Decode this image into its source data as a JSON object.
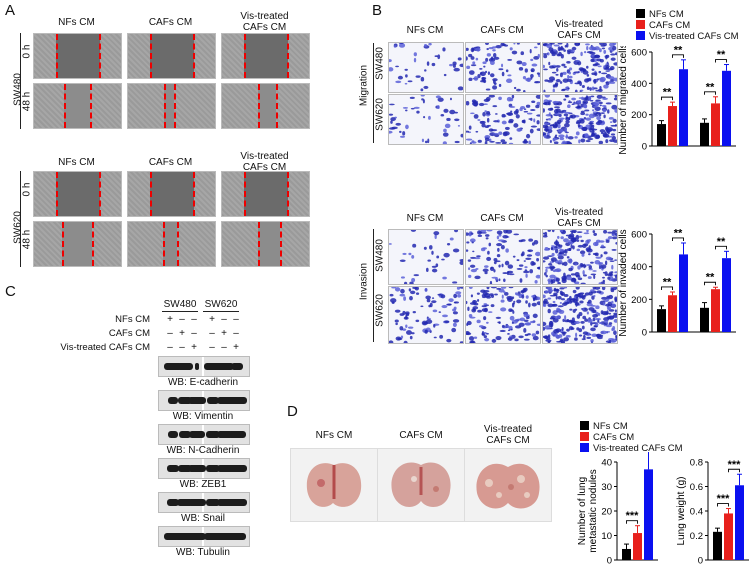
{
  "panels": {
    "a": "A",
    "b": "B",
    "c": "C",
    "d": "D"
  },
  "conditions": {
    "nfs": "NFs CM",
    "cafs": "CAFs CM",
    "vis_line1": "Vis-treated",
    "vis_line2": "CAFs CM",
    "vis_full": "Vis-treated CAFs CM"
  },
  "cell_lines": {
    "sw480": "SW480",
    "sw620": "SW620"
  },
  "timepoints": {
    "t0": "0 h",
    "t48": "48 h"
  },
  "assays": {
    "migration": "Migration",
    "invasion": "Invasion"
  },
  "signs": {
    "plus": "+",
    "minus": "–"
  },
  "wb_labels": [
    "WB: E-cadherin",
    "WB: Vimentin",
    "WB: N-Cadherin",
    "WB: ZEB1",
    "WB: Snail",
    "WB: Tubulin"
  ],
  "colors": {
    "nfs": "#000000",
    "cafs": "#e8201c",
    "vis": "#0a10f0"
  },
  "significance": {
    "two": "**",
    "three": "***"
  },
  "chart_data": [
    {
      "type": "bar",
      "ylabel": "Number of migrated cells",
      "ylim": [
        0,
        600
      ],
      "yticks": [
        "0",
        "200",
        "400",
        "600"
      ],
      "categories": [
        "SW480",
        "SW620"
      ],
      "series": [
        {
          "name": "NFs CM",
          "values": [
            140,
            148
          ],
          "errors": [
            22,
            25
          ]
        },
        {
          "name": "CAFs CM",
          "values": [
            255,
            272
          ],
          "errors": [
            25,
            42
          ]
        },
        {
          "name": "Vis-treated CAFs CM",
          "values": [
            490,
            480
          ],
          "errors": [
            60,
            40
          ]
        }
      ],
      "annotations": [
        "**",
        "**",
        "**",
        "**"
      ]
    },
    {
      "type": "bar",
      "ylabel": "Number of invaded cells",
      "ylim": [
        0,
        600
      ],
      "yticks": [
        "0",
        "200",
        "400",
        "600"
      ],
      "categories": [
        "SW480",
        "SW620"
      ],
      "series": [
        {
          "name": "NFs CM",
          "values": [
            140,
            148
          ],
          "errors": [
            20,
            32
          ]
        },
        {
          "name": "CAFs CM",
          "values": [
            225,
            262
          ],
          "errors": [
            20,
            12
          ]
        },
        {
          "name": "Vis-treated CAFs CM",
          "values": [
            475,
            452
          ],
          "errors": [
            70,
            42
          ]
        }
      ],
      "annotations": [
        "**",
        "**",
        "**",
        "**"
      ]
    },
    {
      "type": "bar",
      "ylabel": "Number of lung metastatic nodules",
      "ylim": [
        0,
        40
      ],
      "yticks": [
        "0",
        "10",
        "20",
        "30",
        "40"
      ],
      "categories": [
        "lung"
      ],
      "series": [
        {
          "name": "NFs CM",
          "values": [
            4.5
          ],
          "errors": [
            2
          ]
        },
        {
          "name": "CAFs CM",
          "values": [
            11
          ],
          "errors": [
            3
          ]
        },
        {
          "name": "Vis-treated CAFs CM",
          "values": [
            37
          ],
          "errors": [
            8
          ]
        }
      ],
      "annotations": [
        "***",
        "***"
      ]
    },
    {
      "type": "bar",
      "ylabel": "Lung weight (g)",
      "ylim": [
        0,
        0.8
      ],
      "yticks": [
        "0",
        "0.2",
        "0.4",
        "0.6",
        "0.8"
      ],
      "categories": [
        "lung"
      ],
      "series": [
        {
          "name": "NFs CM",
          "values": [
            0.23
          ],
          "errors": [
            0.03
          ]
        },
        {
          "name": "CAFs CM",
          "values": [
            0.38
          ],
          "errors": [
            0.04
          ]
        },
        {
          "name": "Vis-treated CAFs CM",
          "values": [
            0.61
          ],
          "errors": [
            0.09
          ]
        }
      ],
      "annotations": [
        "***",
        "***"
      ]
    }
  ]
}
